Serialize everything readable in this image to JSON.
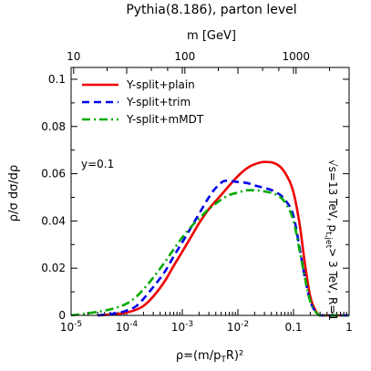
{
  "chart_data": {
    "type": "line",
    "title": "Pythia(8.186), parton level",
    "xlabel": "ρ=(m/p_TR)²",
    "ylabel": "ρ/σ dσ/dρ",
    "x2label": "m [GeV]",
    "x_scale": "log",
    "xlim": [
      1e-05,
      1
    ],
    "ylim": [
      0,
      0.105
    ],
    "x_ticks": [
      {
        "value": 1e-05,
        "base": "10",
        "exp": "-5"
      },
      {
        "value": 0.0001,
        "base": "10",
        "exp": "-4"
      },
      {
        "value": 0.001,
        "base": "10",
        "exp": "-3"
      },
      {
        "value": 0.01,
        "base": "10",
        "exp": "-2"
      },
      {
        "value": 0.1,
        "base": "",
        "exp": "",
        "text": "0.1"
      },
      {
        "value": 1,
        "base": "",
        "exp": "",
        "text": "1"
      }
    ],
    "y_ticks": [
      {
        "value": 0,
        "text": "0"
      },
      {
        "value": 0.02,
        "text": "0.02"
      },
      {
        "value": 0.04,
        "text": "0.04"
      },
      {
        "value": 0.06,
        "text": "0.06"
      },
      {
        "value": 0.08,
        "text": "0.08"
      },
      {
        "value": 0.1,
        "text": "0.1"
      }
    ],
    "x2_ticks": [
      {
        "value": 10,
        "text": "10"
      },
      {
        "value": 100,
        "text": "100"
      },
      {
        "value": 1000,
        "text": "1000"
      }
    ],
    "x2_conversion": {
      "p_T_GeV": 3000,
      "R": 1
    },
    "annotations": {
      "left": "y=0.1",
      "right": "√s=13 TeV, p_t,jet> 3 TeV, R=1"
    },
    "legend": {
      "placement": "top-left"
    },
    "series": [
      {
        "name": "Y-split+plain",
        "color": "#ee0000",
        "dash": "solid",
        "x": [
          3e-05,
          6e-05,
          0.0001,
          0.00015,
          0.0002,
          0.0003,
          0.0005,
          0.0007,
          0.001,
          0.0015,
          0.002,
          0.003,
          0.005,
          0.007,
          0.01,
          0.015,
          0.02,
          0.03,
          0.05,
          0.07,
          0.1,
          0.13,
          0.16,
          0.2,
          0.25,
          0.3,
          0.5,
          1
        ],
        "y": [
          0.0,
          0.0005,
          0.0012,
          0.0025,
          0.004,
          0.008,
          0.015,
          0.021,
          0.027,
          0.034,
          0.039,
          0.045,
          0.051,
          0.055,
          0.059,
          0.0625,
          0.064,
          0.065,
          0.064,
          0.0605,
          0.052,
          0.038,
          0.022,
          0.008,
          0.002,
          0.0,
          0.0,
          0.0
        ]
      },
      {
        "name": "Y-split+trim",
        "color": "#0000ee",
        "dash": "dashed",
        "x": [
          3e-05,
          6e-05,
          0.0001,
          0.00015,
          0.0002,
          0.0003,
          0.0005,
          0.0007,
          0.001,
          0.0015,
          0.002,
          0.003,
          0.004,
          0.006,
          0.01,
          0.015,
          0.02,
          0.03,
          0.05,
          0.07,
          0.1,
          0.13,
          0.16,
          0.2,
          0.25,
          0.3,
          0.5,
          1
        ],
        "y": [
          0.0,
          0.0008,
          0.002,
          0.004,
          0.007,
          0.012,
          0.019,
          0.025,
          0.031,
          0.038,
          0.043,
          0.05,
          0.054,
          0.057,
          0.0565,
          0.056,
          0.055,
          0.054,
          0.052,
          0.049,
          0.042,
          0.028,
          0.016,
          0.006,
          0.0015,
          0.0,
          0.0,
          0.0
        ]
      },
      {
        "name": "Y-split+mMDT",
        "color": "#00aa00",
        "dash": "dashdot",
        "x": [
          1e-05,
          3e-05,
          6e-05,
          0.0001,
          0.00015,
          0.0002,
          0.0003,
          0.0005,
          0.0007,
          0.001,
          0.0015,
          0.002,
          0.003,
          0.005,
          0.007,
          0.01,
          0.015,
          0.02,
          0.03,
          0.05,
          0.07,
          0.1,
          0.13,
          0.16,
          0.2,
          0.25,
          0.3,
          0.5,
          1
        ],
        "y": [
          0.0,
          0.0015,
          0.003,
          0.005,
          0.008,
          0.011,
          0.016,
          0.023,
          0.028,
          0.033,
          0.038,
          0.041,
          0.045,
          0.049,
          0.051,
          0.052,
          0.053,
          0.053,
          0.0525,
          0.051,
          0.048,
          0.04,
          0.027,
          0.016,
          0.006,
          0.0015,
          0.0,
          0.0,
          0.0
        ]
      }
    ]
  }
}
